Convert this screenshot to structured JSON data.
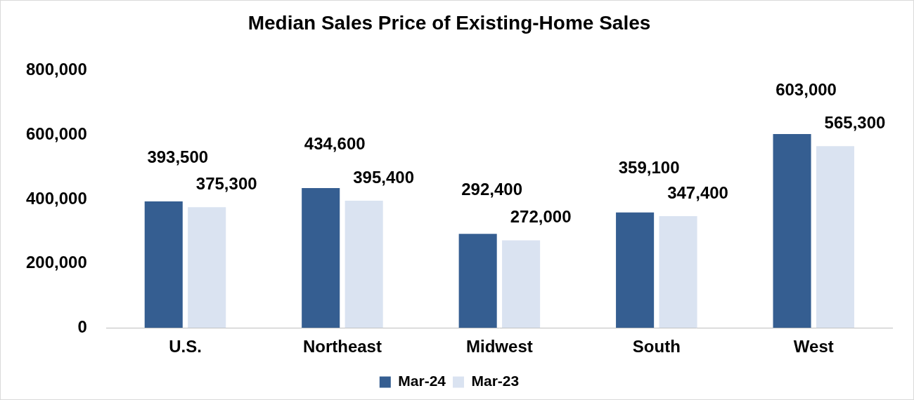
{
  "chart_data": {
    "type": "bar",
    "title": "Median Sales Price of Existing-Home Sales",
    "categories": [
      "U.S.",
      "Northeast",
      "Midwest",
      "South",
      "West"
    ],
    "series": [
      {
        "name": "Mar-24",
        "color": "#355e91",
        "values": [
          393500,
          434600,
          292400,
          359100,
          603000
        ],
        "value_labels": [
          "393,500",
          "434,600",
          "292,400",
          "359,100",
          "603,000"
        ]
      },
      {
        "name": "Mar-23",
        "color": "#dae3f1",
        "values": [
          375300,
          395400,
          272000,
          347400,
          565300
        ],
        "value_labels": [
          "375,300",
          "395,400",
          "272,000",
          "347,400",
          "565,300"
        ]
      }
    ],
    "ylim": [
      0,
      800000
    ],
    "yticks": [
      0,
      {
        "value": 200000,
        "label": "200,000"
      },
      {
        "value": 400000,
        "label": "400,000"
      },
      {
        "value": 600000,
        "label": "600,000"
      },
      {
        "value": 800000,
        "label": "800,000"
      }
    ],
    "grid": false,
    "legend": "bottom",
    "data_labels": true
  }
}
